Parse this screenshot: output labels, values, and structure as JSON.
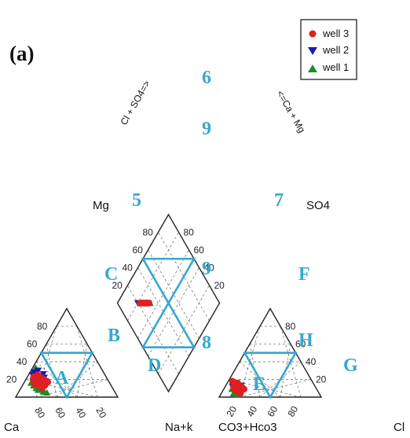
{
  "chart_data": {
    "type": "scatter",
    "subtype": "piper-trilinear-diagram",
    "panel_label": "(a)",
    "colors": {
      "frame": "#222222",
      "grid": "#666666",
      "zones": "#35a8d0",
      "well 3": "#e02020",
      "well 2": "#1a1ab0",
      "well 1": "#1e8a2a"
    },
    "cation_triangle": {
      "vertex_labels": {
        "left": "Ca",
        "right": "Na+k",
        "top": "Mg"
      },
      "ticks": {
        "Mg": [
          "20",
          "40",
          "60",
          "80"
        ],
        "Ca": [
          "80",
          "60",
          "40",
          "20"
        ]
      },
      "zones": [
        "A",
        "B",
        "C",
        "D"
      ]
    },
    "anion_triangle": {
      "vertex_labels": {
        "left": "CO3+Hco3",
        "right": "Cl",
        "top": "SO4"
      },
      "ticks": {
        "SO4": [
          "20",
          "40",
          "60",
          "80"
        ],
        "CO3+Hco3": [
          "20",
          "40",
          "60",
          "80"
        ]
      },
      "zones": [
        "E",
        "F",
        "G",
        "H"
      ]
    },
    "diamond": {
      "upper_left_axis": {
        "label": "Cl + SO4=>",
        "ticks": [
          "20",
          "40",
          "60",
          "80"
        ]
      },
      "upper_right_axis": {
        "label": "<=Ca + Mg",
        "ticks": [
          "20",
          "40",
          "60",
          "80"
        ]
      },
      "zones": [
        "5",
        "6",
        "7",
        "8",
        "9",
        "9"
      ]
    },
    "legend": {
      "position": "top-right",
      "entries": [
        {
          "name": "well 3",
          "marker": "circle",
          "color": "#e02020"
        },
        {
          "name": "well 2",
          "marker": "triangle-down",
          "color": "#1a1ab0"
        },
        {
          "name": "well 1",
          "marker": "triangle-up",
          "color": "#1e8a2a"
        }
      ]
    },
    "series": [
      {
        "name": "well 3",
        "marker": "circle",
        "cations": [
          [
            68,
            17
          ],
          [
            66,
            16
          ],
          [
            70,
            15
          ],
          [
            64,
            18
          ],
          [
            71,
            19
          ],
          [
            67,
            14
          ],
          [
            65,
            20
          ],
          [
            69,
            22
          ],
          [
            72,
            16
          ],
          [
            63,
            15
          ],
          [
            66,
            21
          ],
          [
            70,
            18
          ],
          [
            68,
            12
          ],
          [
            74,
            14
          ],
          [
            67,
            24
          ],
          [
            62,
            20
          ],
          [
            71,
            23
          ],
          [
            65,
            13
          ],
          [
            69,
            10
          ],
          [
            66,
            25
          ],
          [
            60,
            17
          ],
          [
            73,
            20
          ],
          [
            64,
            22
          ],
          [
            70,
            13
          ]
        ],
        "anions": [
          [
            78,
            8
          ],
          [
            75,
            10
          ],
          [
            80,
            7
          ],
          [
            77,
            12
          ],
          [
            74,
            9
          ],
          [
            79,
            11
          ],
          [
            76,
            6
          ],
          [
            73,
            13
          ],
          [
            81,
            9
          ],
          [
            75,
            14
          ],
          [
            78,
            5
          ],
          [
            72,
            11
          ],
          [
            80,
            12
          ],
          [
            76,
            15
          ],
          [
            79,
            8
          ],
          [
            74,
            16
          ],
          [
            77,
            4
          ],
          [
            71,
            9
          ],
          [
            78,
            18
          ],
          [
            75,
            7
          ]
        ],
        "diamond": [
          [
            15,
            73
          ],
          [
            16,
            75
          ],
          [
            14,
            71
          ],
          [
            17,
            74
          ],
          [
            15,
            77
          ],
          [
            13,
            72
          ],
          [
            16,
            70
          ],
          [
            18,
            76
          ],
          [
            14,
            75
          ],
          [
            17,
            72
          ],
          [
            12,
            74
          ],
          [
            16,
            78
          ],
          [
            15,
            69
          ],
          [
            19,
            74
          ],
          [
            13,
            76
          ],
          [
            17,
            70
          ]
        ]
      },
      {
        "name": "well 2",
        "marker": "triangle-down",
        "cations": [
          [
            65,
            16
          ],
          [
            69,
            19
          ],
          [
            62,
            18
          ],
          [
            72,
            17
          ],
          [
            66,
            23
          ],
          [
            70,
            14
          ],
          [
            64,
            21
          ],
          [
            60,
            26
          ],
          [
            68,
            28
          ],
          [
            63,
            30
          ],
          [
            74,
            18
          ],
          [
            67,
            12
          ],
          [
            61,
            22
          ],
          [
            71,
            25
          ]
        ],
        "anions": [
          [
            77,
            9
          ],
          [
            74,
            12
          ],
          [
            79,
            6
          ],
          [
            76,
            14
          ],
          [
            73,
            8
          ],
          [
            80,
            10
          ],
          [
            75,
            16
          ],
          [
            72,
            13
          ],
          [
            78,
            4
          ],
          [
            81,
            12
          ]
        ],
        "diamond": [
          [
            15,
            76
          ],
          [
            18,
            73
          ],
          [
            13,
            74
          ],
          [
            16,
            71
          ],
          [
            14,
            78
          ],
          [
            19,
            72
          ],
          [
            17,
            77
          ],
          [
            12,
            73
          ],
          [
            15,
            80
          ],
          [
            18,
            70
          ]
        ]
      },
      {
        "name": "well 1",
        "marker": "triangle-up",
        "cations": [
          [
            72,
            12
          ],
          [
            75,
            10
          ],
          [
            69,
            8
          ],
          [
            73,
            15
          ],
          [
            76,
            13
          ],
          [
            70,
            6
          ],
          [
            68,
            28
          ],
          [
            66,
            31
          ],
          [
            64,
            33
          ],
          [
            74,
            8
          ],
          [
            71,
            20
          ],
          [
            77,
            16
          ],
          [
            67,
            5
          ],
          [
            65,
            27
          ]
        ],
        "anions": [
          [
            82,
            5
          ],
          [
            79,
            8
          ],
          [
            84,
            4
          ],
          [
            78,
            10
          ],
          [
            81,
            7
          ],
          [
            83,
            9
          ],
          [
            80,
            3
          ],
          [
            77,
            6
          ]
        ],
        "diamond": [
          [
            12,
            73
          ],
          [
            13,
            70
          ],
          [
            11,
            75
          ],
          [
            14,
            69
          ],
          [
            12,
            77
          ],
          [
            13,
            72
          ],
          [
            15,
            68
          ],
          [
            11,
            71
          ]
        ]
      }
    ]
  }
}
